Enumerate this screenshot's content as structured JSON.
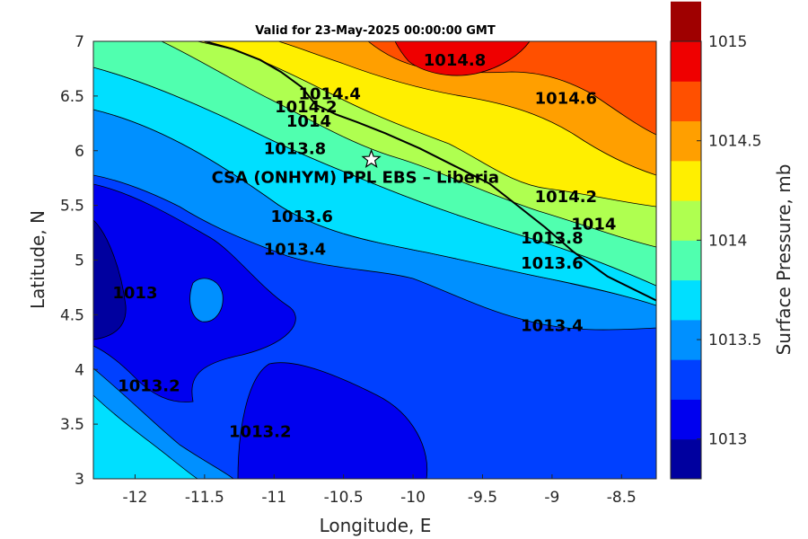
{
  "chart_data": {
    "type": "contour",
    "title": "Valid for 23-May-2025 00:00:00 GMT",
    "xlabel": "Longitude, E",
    "ylabel": "Latitude, N",
    "xlim": [
      -12.3,
      -8.25
    ],
    "ylim": [
      3,
      7
    ],
    "xticks": [
      "-12",
      "-11.5",
      "-11",
      "-10.5",
      "-10",
      "-9.5",
      "-9",
      "-8.5"
    ],
    "yticks": [
      "3",
      "3.5",
      "4",
      "4.5",
      "5",
      "5.5",
      "6",
      "6.5",
      "7"
    ],
    "colorbar": {
      "label": "Surface Pressure, mb",
      "ticks": [
        "1013",
        "1013.5",
        "1014",
        "1014.5",
        "1015"
      ],
      "range": [
        1012.8,
        1015
      ],
      "step": 0.2,
      "colors": [
        "#00009f",
        "#0000ef",
        "#0040ff",
        "#0090ff",
        "#00dfff",
        "#50ffaf",
        "#afff50",
        "#ffef00",
        "#ff9f00",
        "#ff5000",
        "#ef0000",
        "#9f0000"
      ]
    },
    "levels": [
      1013,
      1013.2,
      1013.4,
      1013.6,
      1013.8,
      1014,
      1014.2,
      1014.4,
      1014.6,
      1014.8
    ],
    "contour_labels": [
      {
        "text": "1014.8",
        "lon": -9.7,
        "lat": 6.78
      },
      {
        "text": "1014.6",
        "lon": -8.9,
        "lat": 6.43
      },
      {
        "text": "1014.4",
        "lon": -10.6,
        "lat": 6.47
      },
      {
        "text": "1014.2",
        "lon": -10.77,
        "lat": 6.35
      },
      {
        "text": "1014",
        "lon": -10.75,
        "lat": 6.22
      },
      {
        "text": "1013.8",
        "lon": -10.85,
        "lat": 5.97
      },
      {
        "text": "1014.2",
        "lon": -8.9,
        "lat": 5.53
      },
      {
        "text": "1014",
        "lon": -8.7,
        "lat": 5.28
      },
      {
        "text": "1013.8",
        "lon": -9.0,
        "lat": 5.15
      },
      {
        "text": "1013.6",
        "lon": -9.0,
        "lat": 4.92
      },
      {
        "text": "1013.6",
        "lon": -10.8,
        "lat": 5.35
      },
      {
        "text": "1013.4",
        "lon": -10.85,
        "lat": 5.05
      },
      {
        "text": "1013.4",
        "lon": -9.0,
        "lat": 4.35
      },
      {
        "text": "1013",
        "lon": -12.0,
        "lat": 4.65
      },
      {
        "text": "1013.2",
        "lon": -11.9,
        "lat": 3.8
      },
      {
        "text": "1013.2",
        "lon": -11.1,
        "lat": 3.38
      }
    ],
    "site": {
      "name": "CSA (ONHYM) PPL EBS  – Liberia",
      "lon": -10.3,
      "lat": 5.92,
      "marker": "star"
    },
    "coastline_lonlat": [
      [
        -11.5,
        7.0
      ],
      [
        -11.3,
        6.93
      ],
      [
        -11.1,
        6.83
      ],
      [
        -10.95,
        6.72
      ],
      [
        -10.8,
        6.58
      ],
      [
        -10.7,
        6.42
      ],
      [
        -10.55,
        6.33
      ],
      [
        -10.4,
        6.26
      ],
      [
        -10.2,
        6.16
      ],
      [
        -9.95,
        6.02
      ],
      [
        -9.7,
        5.86
      ],
      [
        -9.45,
        5.7
      ],
      [
        -9.25,
        5.5
      ],
      [
        -9.05,
        5.3
      ],
      [
        -8.85,
        5.08
      ],
      [
        -8.6,
        4.85
      ],
      [
        -8.25,
        4.63
      ]
    ],
    "fields": [
      {
        "value": 1014.9,
        "lon": -9.2,
        "lat": 7.05,
        "radius": 0.6
      },
      {
        "value": 1014.7,
        "lon": -9.0,
        "lat": 6.8,
        "radius": 1.1
      },
      {
        "value": 1014.45,
        "lon": -9.7,
        "lat": 6.4,
        "radius": 1.6
      },
      {
        "value": 1014.1,
        "lon": -9.4,
        "lat": 5.8,
        "radius": 2.3
      }
    ]
  }
}
